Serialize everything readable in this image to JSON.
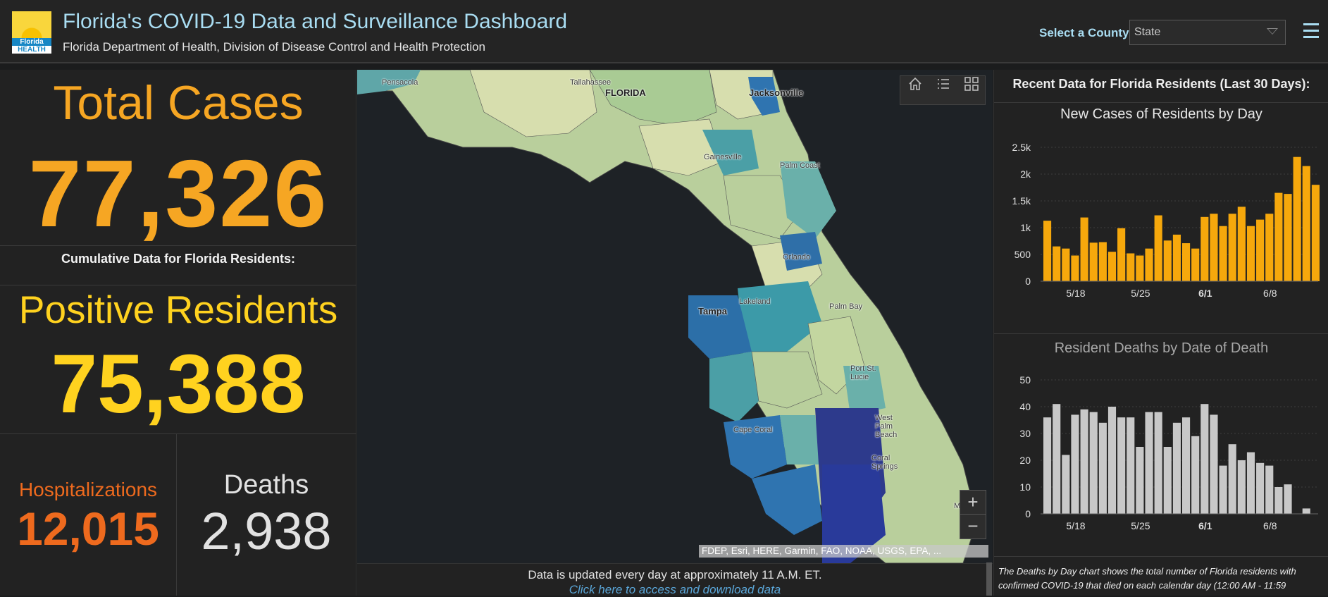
{
  "header": {
    "title": "Florida's COVID-19 Data and Surveillance Dashboard",
    "subtitle": "Florida Department of Health, Division of Disease Control and Health Protection",
    "logo_line1": "Florida",
    "logo_line2": "HEALTH",
    "county_label": "Select a County",
    "county_value": "State"
  },
  "left": {
    "total_label": "Total Cases",
    "total_value": "77,326",
    "cumulative_label": "Cumulative Data for Florida Residents:",
    "positive_label": "Positive Residents",
    "positive_value": "75,388",
    "hosp_label": "Hospitalizations",
    "hosp_value": "12,015",
    "deaths_label": "Deaths",
    "deaths_value": "2,938"
  },
  "map": {
    "labels": [
      "Pensacola",
      "Tallahassee",
      "FLORIDA",
      "Jacksonville",
      "Gainesville",
      "Palm Coast",
      "Orlando",
      "Lakeland",
      "Tampa",
      "Palm Bay",
      "Port St. Lucie",
      "West Palm Beach",
      "Cape Coral",
      "Coral Springs",
      "M"
    ],
    "attribution": "FDEP, Esri, HERE, Garmin, FAO, NOAA, USGS, EPA, ...",
    "zoom_in": "+",
    "zoom_out": "−"
  },
  "footer": {
    "text": "Data is updated every day at approximately 11 A.M. ET.",
    "link": "Click here to access and download data"
  },
  "right": {
    "title": "Recent Data for Florida Residents (Last 30 Days):",
    "note": "The Deaths by Day chart shows the total number of Florida residents with confirmed COVID-19 that died on each calendar day (12:00 AM - 11:59"
  },
  "chart_data": [
    {
      "type": "bar",
      "title": "New Cases of Residents by Day",
      "x_ticks": [
        "5/18",
        "5/25",
        "6/1",
        "6/8"
      ],
      "y_ticks": [
        "0",
        "500",
        "1k",
        "1.5k",
        "2k",
        "2.5k"
      ],
      "ylim": [
        0,
        2500
      ],
      "values": [
        1130,
        650,
        610,
        480,
        1190,
        720,
        730,
        550,
        990,
        520,
        480,
        610,
        1230,
        760,
        870,
        710,
        610,
        1200,
        1260,
        1030,
        1260,
        1390,
        1030,
        1150,
        1260,
        1650,
        1630,
        2320,
        2150,
        1800
      ],
      "color": "#f6a80c",
      "title_color": "#e8e8e8"
    },
    {
      "type": "bar",
      "title": "Resident Deaths by Date of Death",
      "x_ticks": [
        "5/18",
        "5/25",
        "6/1",
        "6/8"
      ],
      "y_ticks": [
        "0",
        "10",
        "20",
        "30",
        "40",
        "50"
      ],
      "ylim": [
        0,
        50
      ],
      "values": [
        36,
        41,
        22,
        37,
        39,
        38,
        34,
        40,
        36,
        36,
        25,
        38,
        38,
        25,
        34,
        36,
        29,
        41,
        37,
        18,
        26,
        20,
        23,
        19,
        18,
        10,
        11,
        0,
        2
      ],
      "color": "#c8c8c8",
      "title_color": "#a8a8a8"
    }
  ]
}
